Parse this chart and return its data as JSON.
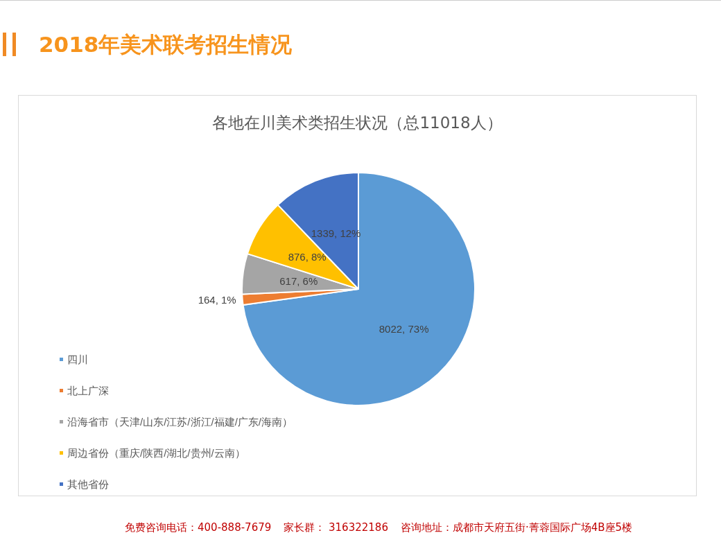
{
  "chart_data": {
    "type": "pie",
    "title": "2018年美术联考招生情况",
    "subtitle": "各地在川美术类招生状况（总11018人）",
    "categories": [
      "四川",
      "北上广深",
      "沿海省市（天津/山东/江苏/浙江/福建/广东/海南）",
      "周边省份（重庆/陕西/湖北/贵州/云南）",
      "其他省份"
    ],
    "values": [
      8022,
      164,
      617,
      876,
      1339
    ],
    "colors": [
      "#5b9bd5",
      "#ed7d31",
      "#a5a5a5",
      "#ffc000",
      "#4472c4"
    ],
    "value_labels": [
      "8022, 73%",
      "164, 1%",
      "617, 6%",
      "876, 8%",
      "1339, 12%"
    ],
    "legend": "bottom left",
    "annotations": [
      "免费咨询电话：400-888-7679",
      "家长群： 316322186",
      "咨询地址：成都市天府五街·菁蓉国际广场4B座5楼"
    ]
  }
}
